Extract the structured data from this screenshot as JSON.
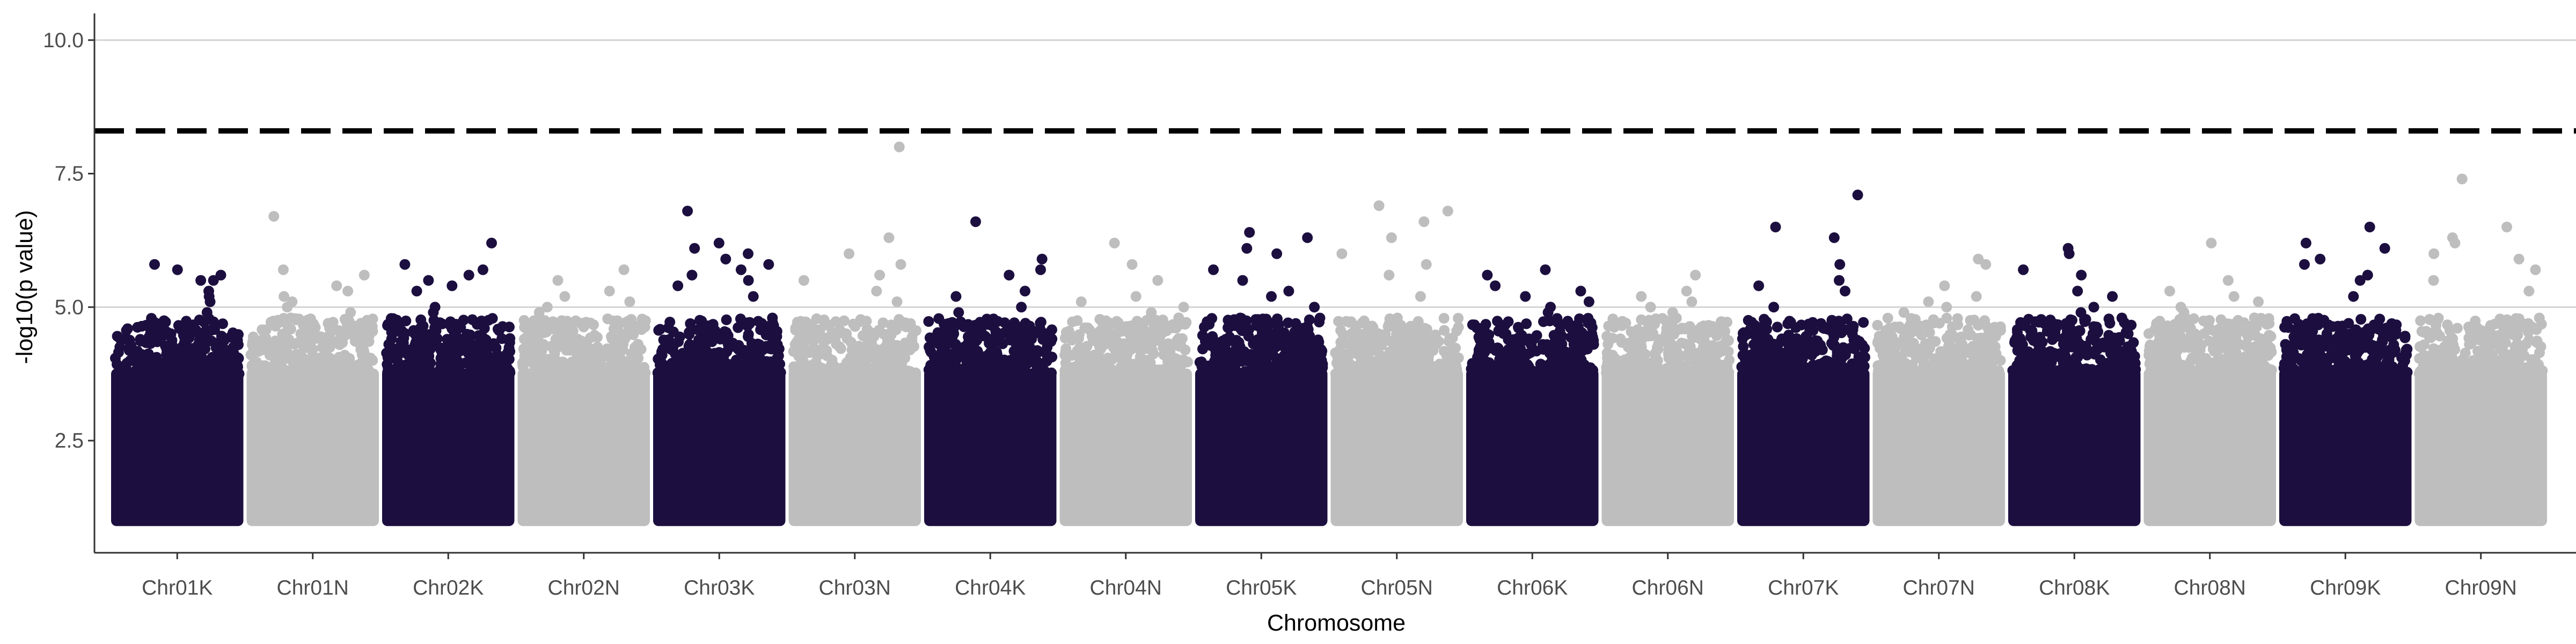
{
  "chart_data": {
    "type": "scatter",
    "subtype": "manhattan",
    "title": "",
    "xlabel": "Chromosome",
    "ylabel": "-log10(p value)",
    "ylim": [
      0.4,
      10.5
    ],
    "yticks": [
      2.5,
      5.0,
      7.5,
      10.0
    ],
    "ytick_labels": [
      "2.5",
      "5.0",
      "7.5",
      "10.0"
    ],
    "gridlines_y": [
      5.0,
      10.0
    ],
    "significance_threshold": 8.3,
    "min_plotted": 1.0,
    "colors": {
      "K": "#1c0f3f",
      "N": "#bebebe",
      "threshold": "#000000",
      "grid": "#d3d3d3"
    },
    "categories": [
      "Chr01K",
      "Chr01N",
      "Chr02K",
      "Chr02N",
      "Chr03K",
      "Chr03N",
      "Chr04K",
      "Chr04N",
      "Chr05K",
      "Chr05N",
      "Chr06K",
      "Chr06N",
      "Chr07K",
      "Chr07N",
      "Chr08K",
      "Chr08N",
      "Chr09K",
      "Chr09N"
    ],
    "series": [
      {
        "name": "Chr01K",
        "group": "K",
        "top_peaks": [
          5.8,
          5.7,
          5.6,
          5.5,
          5.5,
          5.3,
          5.2,
          5.1,
          4.9,
          4.7
        ]
      },
      {
        "name": "Chr01N",
        "group": "N",
        "top_peaks": [
          6.7,
          5.7,
          5.6,
          5.4,
          5.3,
          5.2,
          5.1,
          5.0,
          4.9
        ]
      },
      {
        "name": "Chr02K",
        "group": "K",
        "top_peaks": [
          6.2,
          5.8,
          5.7,
          5.6,
          5.5,
          5.4,
          5.3,
          5.0,
          4.9
        ]
      },
      {
        "name": "Chr02N",
        "group": "N",
        "top_peaks": [
          5.7,
          5.5,
          5.3,
          5.2,
          5.1,
          5.0,
          4.9
        ]
      },
      {
        "name": "Chr03K",
        "group": "K",
        "top_peaks": [
          6.8,
          6.2,
          6.1,
          6.0,
          5.9,
          5.8,
          5.7,
          5.6,
          5.5,
          5.4,
          5.2
        ]
      },
      {
        "name": "Chr03N",
        "group": "N",
        "top_peaks": [
          8.0,
          6.3,
          6.0,
          5.8,
          5.6,
          5.5,
          5.3,
          5.1
        ]
      },
      {
        "name": "Chr04K",
        "group": "K",
        "top_peaks": [
          6.6,
          5.9,
          5.7,
          5.6,
          5.3,
          5.2,
          5.0,
          4.9
        ]
      },
      {
        "name": "Chr04N",
        "group": "N",
        "top_peaks": [
          6.2,
          5.8,
          5.5,
          5.2,
          5.1,
          5.0,
          4.9
        ]
      },
      {
        "name": "Chr05K",
        "group": "K",
        "top_peaks": [
          6.4,
          6.3,
          6.1,
          6.0,
          5.7,
          5.5,
          5.3,
          5.2,
          5.0
        ]
      },
      {
        "name": "Chr05N",
        "group": "N",
        "top_peaks": [
          6.9,
          6.8,
          6.6,
          6.3,
          6.0,
          5.8,
          5.6,
          5.2
        ]
      },
      {
        "name": "Chr06K",
        "group": "K",
        "top_peaks": [
          5.7,
          5.6,
          5.4,
          5.3,
          5.2,
          5.1,
          5.0,
          4.9
        ]
      },
      {
        "name": "Chr06N",
        "group": "N",
        "top_peaks": [
          5.6,
          5.3,
          5.2,
          5.1,
          5.0,
          4.9
        ]
      },
      {
        "name": "Chr07K",
        "group": "K",
        "top_peaks": [
          7.1,
          6.5,
          6.3,
          5.8,
          5.5,
          5.4,
          5.3,
          5.0
        ]
      },
      {
        "name": "Chr07N",
        "group": "N",
        "top_peaks": [
          5.9,
          5.8,
          5.4,
          5.2,
          5.1,
          5.0,
          4.9
        ]
      },
      {
        "name": "Chr08K",
        "group": "K",
        "top_peaks": [
          6.1,
          6.0,
          5.7,
          5.6,
          5.3,
          5.2,
          5.0,
          4.9
        ]
      },
      {
        "name": "Chr08N",
        "group": "N",
        "top_peaks": [
          6.2,
          5.5,
          5.3,
          5.2,
          5.1,
          5.0,
          4.9
        ]
      },
      {
        "name": "Chr09K",
        "group": "K",
        "top_peaks": [
          6.5,
          6.2,
          6.1,
          5.9,
          5.8,
          5.6,
          5.5,
          5.2
        ]
      },
      {
        "name": "Chr09N",
        "group": "N",
        "top_peaks": [
          7.4,
          6.5,
          6.3,
          6.2,
          6.0,
          5.9,
          5.7,
          5.5,
          5.3
        ]
      }
    ]
  }
}
